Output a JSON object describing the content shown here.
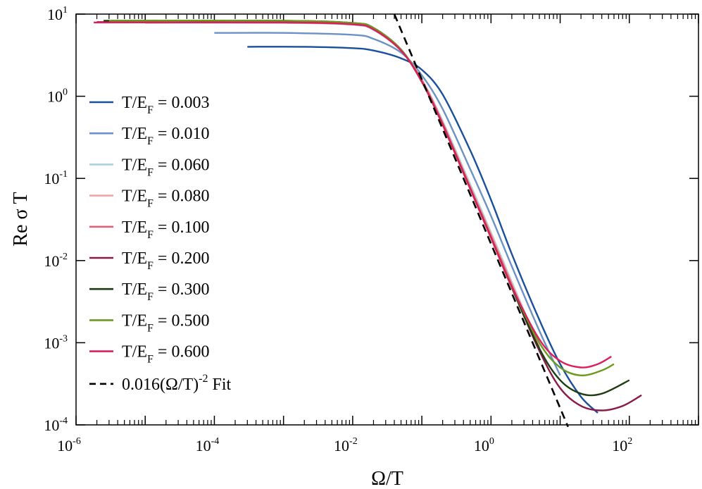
{
  "chart_data": {
    "type": "line",
    "title": "",
    "xlabel": "Ω/T",
    "ylabel": "Re σ T",
    "xscale": "log",
    "yscale": "log",
    "xlim": [
      1e-06,
      1000
    ],
    "ylim": [
      0.0001,
      10
    ],
    "x_ticks": [
      {
        "base": "10",
        "exp": "-6",
        "value": 1e-06
      },
      {
        "base": "10",
        "exp": "-4",
        "value": 0.0001
      },
      {
        "base": "10",
        "exp": "-2",
        "value": 0.01
      },
      {
        "base": "10",
        "exp": "0",
        "value": 1
      },
      {
        "base": "10",
        "exp": "2",
        "value": 100
      }
    ],
    "y_ticks": [
      {
        "base": "10",
        "exp": "1",
        "value": 10
      },
      {
        "base": "10",
        "exp": "0",
        "value": 1
      },
      {
        "base": "10",
        "exp": "-1",
        "value": 0.1
      },
      {
        "base": "10",
        "exp": "-2",
        "value": 0.01
      },
      {
        "base": "10",
        "exp": "-3",
        "value": 0.001
      },
      {
        "base": "10",
        "exp": "-4",
        "value": 0.0001
      }
    ],
    "legend_position": "left",
    "series": [
      {
        "name": "T/EF = 0.003",
        "label_main": "T/E",
        "label_sub": "F",
        "label_value": " = 0.003",
        "color": "#1a4f9c",
        "x": [
          0.0003,
          0.002,
          0.01,
          0.02,
          0.05,
          0.1,
          0.2,
          0.5,
          1,
          2,
          5,
          10,
          20,
          35
        ],
        "y": [
          4.0,
          4.0,
          3.85,
          3.6,
          2.9,
          2.1,
          1.05,
          0.22,
          0.055,
          0.012,
          0.0019,
          0.00055,
          0.00022,
          0.00014
        ]
      },
      {
        "name": "T/EF = 0.010",
        "label_main": "T/E",
        "label_sub": "F",
        "label_value": " = 0.010",
        "color": "#6b91c7",
        "x": [
          0.0001,
          0.001,
          0.01,
          0.02,
          0.05,
          0.1,
          0.2,
          0.5,
          1,
          2,
          5,
          10
        ],
        "y": [
          5.9,
          5.9,
          5.6,
          5.0,
          3.4,
          1.8,
          0.7,
          0.13,
          0.035,
          0.0085,
          0.0014,
          0.0004
        ]
      },
      {
        "name": "T/EF = 0.060",
        "label_main": "T/E",
        "label_sub": "F",
        "label_value": " = 0.060",
        "color": "#a9d3df",
        "x": [
          1e-05,
          0.001,
          0.01,
          0.02,
          0.05,
          0.1,
          0.2,
          0.5,
          1,
          2,
          5
        ],
        "y": [
          7.8,
          7.8,
          7.4,
          6.4,
          3.6,
          1.6,
          0.5,
          0.085,
          0.022,
          0.0055,
          0.0009
        ]
      },
      {
        "name": "T/EF = 0.080",
        "label_main": "T/E",
        "label_sub": "F",
        "label_value": " = 0.080",
        "color": "#f2a3a3",
        "x": [
          1e-05,
          0.001,
          0.01,
          0.02,
          0.05,
          0.1,
          0.2,
          0.5,
          1,
          2,
          5
        ],
        "y": [
          7.9,
          7.9,
          7.5,
          6.5,
          3.6,
          1.6,
          0.48,
          0.08,
          0.021,
          0.0052,
          0.00088
        ]
      },
      {
        "name": "T/EF = 0.100",
        "label_main": "T/E",
        "label_sub": "F",
        "label_value": " = 0.100",
        "color": "#e0607a",
        "x": [
          1e-05,
          0.001,
          0.01,
          0.02,
          0.05,
          0.1,
          0.2,
          0.5,
          1,
          2,
          5
        ],
        "y": [
          7.9,
          7.9,
          7.5,
          6.5,
          3.6,
          1.55,
          0.47,
          0.078,
          0.02,
          0.005,
          0.00085
        ]
      },
      {
        "name": "T/EF = 0.200",
        "label_main": "T/E",
        "label_sub": "F",
        "label_value": " = 0.200",
        "color": "#8c1a48",
        "x": [
          2e-06,
          0.001,
          0.01,
          0.02,
          0.05,
          0.1,
          0.2,
          0.5,
          1,
          2,
          5,
          10,
          20,
          40,
          80,
          150
        ],
        "y": [
          8.0,
          8.0,
          7.6,
          6.6,
          3.6,
          1.5,
          0.45,
          0.075,
          0.019,
          0.0047,
          0.0008,
          0.00028,
          0.00017,
          0.00015,
          0.00017,
          0.00023
        ]
      },
      {
        "name": "T/EF = 0.300",
        "label_main": "T/E",
        "label_sub": "F",
        "label_value": " = 0.300",
        "color": "#1e3d12",
        "x": [
          2.5e-06,
          0.001,
          0.01,
          0.02,
          0.05,
          0.1,
          0.2,
          0.5,
          1,
          2,
          5,
          10,
          20,
          40,
          100
        ],
        "y": [
          8.3,
          8.3,
          7.8,
          6.8,
          3.7,
          1.5,
          0.45,
          0.075,
          0.019,
          0.0047,
          0.00085,
          0.00035,
          0.00024,
          0.00024,
          0.00035
        ]
      },
      {
        "name": "T/EF = 0.500",
        "label_main": "T/E",
        "label_sub": "F",
        "label_value": " = 0.500",
        "color": "#6b9a1f",
        "x": [
          3e-06,
          0.001,
          0.01,
          0.02,
          0.05,
          0.1,
          0.2,
          0.5,
          1,
          2,
          5,
          10,
          20,
          40,
          60
        ],
        "y": [
          8.3,
          8.3,
          7.8,
          6.8,
          3.7,
          1.5,
          0.45,
          0.075,
          0.019,
          0.0048,
          0.001,
          0.0005,
          0.0004,
          0.00046,
          0.00055
        ]
      },
      {
        "name": "T/EF = 0.600",
        "label_main": "T/E",
        "label_sub": "F",
        "label_value": " = 0.600",
        "color": "#dc1f5b",
        "x": [
          1.8e-06,
          0.001,
          0.01,
          0.02,
          0.05,
          0.1,
          0.2,
          0.5,
          1,
          2,
          5,
          10,
          20,
          35,
          55
        ],
        "y": [
          7.9,
          7.9,
          7.5,
          6.5,
          3.6,
          1.5,
          0.45,
          0.075,
          0.019,
          0.0048,
          0.0011,
          0.0006,
          0.0005,
          0.00055,
          0.00068
        ]
      }
    ],
    "fit": {
      "name": "0.016(Ω/T)^-2 Fit",
      "label_main": "0.016(Ω/T)",
      "label_sup": "-2",
      "label_value": " Fit",
      "color": "#000000",
      "coefficient": 0.016,
      "exponent": -2,
      "x_range": [
        0.04,
        13
      ]
    }
  }
}
